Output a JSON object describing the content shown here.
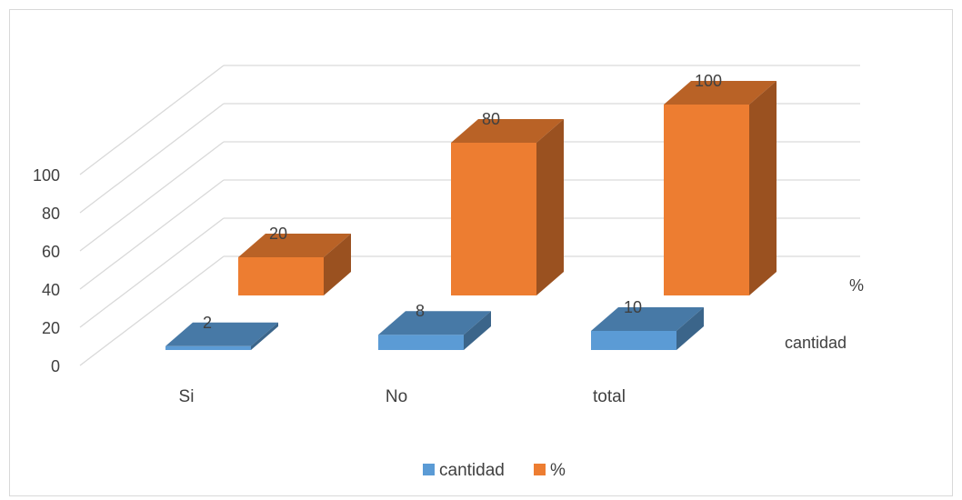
{
  "chart_data": {
    "type": "bar",
    "categories": [
      "Si",
      "No",
      "total"
    ],
    "series": [
      {
        "name": "cantidad",
        "values": [
          2,
          8,
          10
        ],
        "color": "#5b9bd5"
      },
      {
        "name": "%",
        "values": [
          20,
          80,
          100
        ],
        "color": "#ed7d31"
      }
    ],
    "y_ticks": [
      "0",
      "20",
      "40",
      "60",
      "80",
      "100"
    ],
    "ylim": [
      0,
      100
    ],
    "grid": true,
    "legend": "bottom",
    "style": "3d-column"
  }
}
